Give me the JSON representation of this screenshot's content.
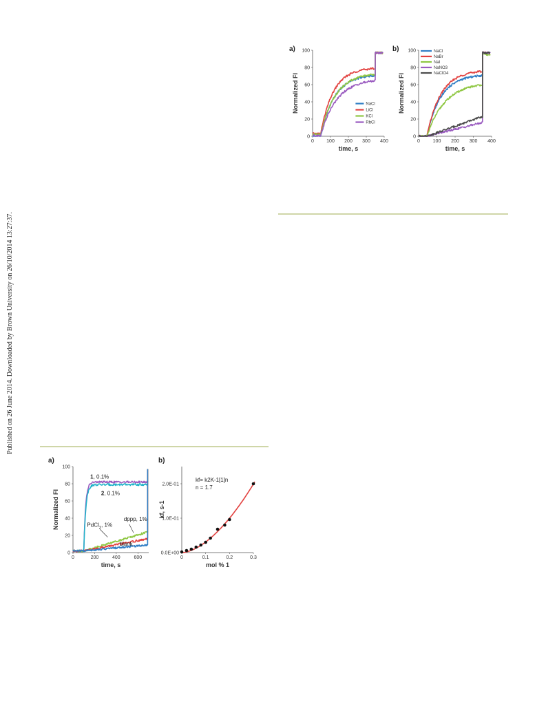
{
  "page": {
    "side_note": "Published on 26 June 2014. Downloaded by Brown University on 26/10/2014 13:27:37."
  },
  "chart_data": [
    {
      "id": "top-a",
      "panel_label": "a)",
      "type": "line",
      "xlabel": "time, s",
      "ylabel": "Normalized FI",
      "xlim": [
        0,
        400
      ],
      "ylim": [
        0,
        100
      ],
      "xticks": [
        0,
        100,
        200,
        300,
        400
      ],
      "yticks": [
        0,
        20,
        40,
        60,
        80,
        100
      ],
      "legend_position": "bottom-right",
      "series": [
        {
          "name": "NaCl",
          "color": "#2f7ec5",
          "t0": 45,
          "t_jump": 350,
          "level": 72,
          "rate": 0.013,
          "base": 0,
          "jump_to": 97
        },
        {
          "name": "LiCl",
          "color": "#e2403e",
          "t0": 45,
          "t_jump": 350,
          "level": 80,
          "rate": 0.014,
          "base": 3,
          "jump_to": 97
        },
        {
          "name": "KCl",
          "color": "#8fc743",
          "t0": 45,
          "t_jump": 350,
          "level": 74,
          "rate": 0.012,
          "base": 2,
          "jump_to": 97
        },
        {
          "name": "RbCl",
          "color": "#9a5bc0",
          "t0": 45,
          "t_jump": 350,
          "level": 67,
          "rate": 0.011,
          "base": 1,
          "jump_to": 97
        }
      ]
    },
    {
      "id": "top-b",
      "panel_label": "b)",
      "type": "line",
      "xlabel": "time, s",
      "ylabel": "Normalized FI",
      "xlim": [
        0,
        400
      ],
      "ylim": [
        0,
        100
      ],
      "xticks": [
        0,
        100,
        200,
        300,
        400
      ],
      "yticks": [
        0,
        20,
        40,
        60,
        80,
        100
      ],
      "legend_position": "top-left",
      "series": [
        {
          "name": "NaCl",
          "color": "#2f7ec5",
          "t0": 45,
          "t_jump": 350,
          "level": 72,
          "rate": 0.013,
          "base": 0,
          "jump_to": 97
        },
        {
          "name": "NaBr",
          "color": "#e2403e",
          "t0": 45,
          "t_jump": 350,
          "level": 77,
          "rate": 0.013,
          "base": 0,
          "jump_to": 97
        },
        {
          "name": "NaI",
          "color": "#8fc743",
          "t0": 45,
          "t_jump": 350,
          "level": 63,
          "rate": 0.01,
          "base": 0,
          "jump_to": 95
        },
        {
          "name": "NaNO3",
          "color": "#9a5bc0",
          "t0": 45,
          "t_jump": 350,
          "level": 16,
          "rate": 0.0,
          "base": 0,
          "jump_to": 97
        },
        {
          "name": "NaClO4",
          "color": "#4a4a4a",
          "t0": 45,
          "t_jump": 350,
          "level": 23,
          "rate": 0.0,
          "base": 0,
          "jump_to": 97
        }
      ]
    },
    {
      "id": "bottom-a",
      "panel_label": "a)",
      "type": "line",
      "xlabel": "time, s",
      "ylabel": "Normalized FI",
      "xlim": [
        0,
        700
      ],
      "ylim": [
        0,
        100
      ],
      "xticks": [
        0,
        200,
        400,
        600
      ],
      "yticks": [
        0,
        20,
        40,
        60,
        80,
        100
      ],
      "series": [
        {
          "name": "1, 0.1%",
          "label_parts": [
            "1",
            ", 0.1%"
          ],
          "color": "#9a5bc0",
          "t0": 100,
          "t_jump": 690,
          "level": 82,
          "rate": 0.06,
          "base": 2,
          "jump_to": 97,
          "label_x": 160,
          "label_y": 86
        },
        {
          "name": "2, 0.1%",
          "label_parts": [
            "2",
            ", 0.1%"
          ],
          "color": "#23b3c9",
          "t0": 100,
          "t_jump": 690,
          "level": 79,
          "rate": 0.055,
          "base": 2,
          "jump_to": 97,
          "label_x": 260,
          "label_y": 67
        },
        {
          "name": "dppp, 1%",
          "color": "#8fc743",
          "t0": 100,
          "t_jump": 690,
          "level": 24,
          "rate": 0.0,
          "base": 2,
          "jump_to": 97,
          "label_x": 470,
          "label_y": 37
        },
        {
          "name": "PdCl2, 1%",
          "label_parts": [
            "PdCl",
            "2",
            ", 1%"
          ],
          "color": "#e2403e",
          "t0": 100,
          "t_jump": 690,
          "level": 16,
          "rate": 0.0,
          "base": 2,
          "jump_to": 97,
          "label_x": 130,
          "label_y": 30
        },
        {
          "name": "blank",
          "color": "#2f7ec5",
          "t0": 100,
          "t_jump": 690,
          "level": 9,
          "rate": 0.0,
          "base": 2,
          "jump_to": 97,
          "label_x": 430,
          "label_y": 8
        }
      ]
    },
    {
      "id": "bottom-b",
      "panel_label": "b)",
      "type": "scatter",
      "xlabel": "mol % 1",
      "ylabel": "kf, s-1",
      "xlim": [
        0,
        0.3
      ],
      "ylim": [
        0,
        0.25
      ],
      "xticks": [
        0,
        0.1,
        0.2,
        0.3
      ],
      "xtick_labels": [
        "0",
        "0.1",
        "0.2",
        "0.3"
      ],
      "yticks": [
        0,
        0.1,
        0.2
      ],
      "ytick_labels": [
        "0.0E+00",
        "1.0E-01",
        "2.0E-01"
      ],
      "equation": "kf= k2K-1[1]n",
      "n_label": "n = 1.7",
      "points": [
        {
          "x": 0.0,
          "y": 0.002
        },
        {
          "x": 0.02,
          "y": 0.006
        },
        {
          "x": 0.04,
          "y": 0.01
        },
        {
          "x": 0.06,
          "y": 0.016
        },
        {
          "x": 0.08,
          "y": 0.022
        },
        {
          "x": 0.1,
          "y": 0.03
        },
        {
          "x": 0.12,
          "y": 0.042
        },
        {
          "x": 0.15,
          "y": 0.068
        },
        {
          "x": 0.18,
          "y": 0.08
        },
        {
          "x": 0.2,
          "y": 0.096
        },
        {
          "x": 0.3,
          "y": 0.2
        }
      ],
      "fit": {
        "exponent": 1.7,
        "coefficient": 1.54,
        "color": "#e2403e"
      }
    }
  ]
}
